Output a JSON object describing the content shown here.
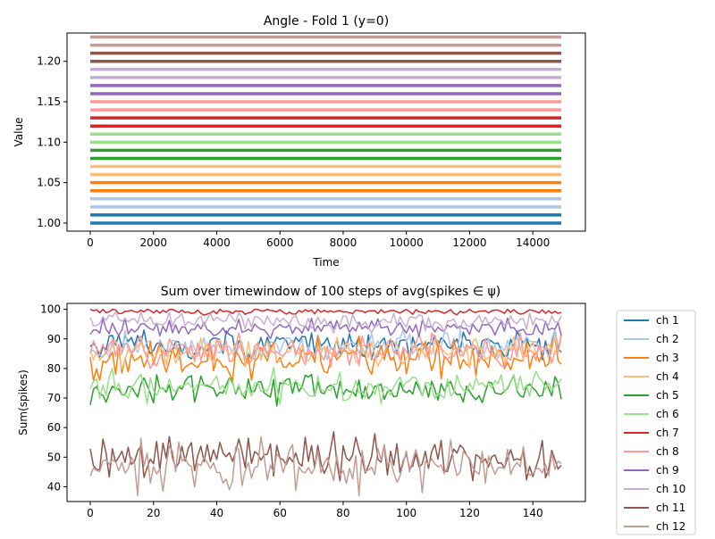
{
  "chart_data": [
    {
      "type": "line",
      "title": "Angle - Fold 1 (y=0)",
      "xlabel": "Time",
      "ylabel": "Value",
      "xlim": [
        0,
        14900
      ],
      "ylim": [
        0.99,
        1.235
      ],
      "xticks": [
        0,
        2000,
        4000,
        6000,
        8000,
        10000,
        12000,
        14000
      ],
      "xtick_labels": [
        "0",
        "2000",
        "4000",
        "6000",
        "8000",
        "10000",
        "12000",
        "14000"
      ],
      "yticks": [
        1.0,
        1.05,
        1.1,
        1.15,
        1.2
      ],
      "ytick_labels": [
        "1.00",
        "1.05",
        "1.10",
        "1.15",
        "1.20"
      ],
      "grid": false,
      "series": [
        {
          "color": "#1f77b4",
          "values": [
            1.0,
            1.01
          ]
        },
        {
          "color": "#aec7e8",
          "values": [
            1.02,
            1.03
          ]
        },
        {
          "color": "#ff7f0e",
          "values": [
            1.04,
            1.05
          ]
        },
        {
          "color": "#ffbb78",
          "values": [
            1.06,
            1.07
          ]
        },
        {
          "color": "#2ca02c",
          "values": [
            1.08,
            1.09
          ]
        },
        {
          "color": "#98df8a",
          "values": [
            1.1,
            1.11
          ]
        },
        {
          "color": "#d62728",
          "values": [
            1.12,
            1.13
          ]
        },
        {
          "color": "#ff9896",
          "values": [
            1.14,
            1.15
          ]
        },
        {
          "color": "#9467bd",
          "values": [
            1.16,
            1.17
          ]
        },
        {
          "color": "#c5b0d5",
          "values": [
            1.18,
            1.19
          ]
        },
        {
          "color": "#8c564b",
          "values": [
            1.2,
            1.21
          ]
        },
        {
          "color": "#c49c94",
          "values": [
            1.22,
            1.23
          ]
        }
      ]
    },
    {
      "type": "line",
      "title": "Sum over timewindow of 100 steps of avg(spikes ∈ ψ)",
      "xlabel": "",
      "ylabel": "Sum(spikes)",
      "xlim": [
        0,
        149
      ],
      "ylim": [
        35,
        102
      ],
      "xticks": [
        0,
        20,
        40,
        60,
        80,
        100,
        120,
        140
      ],
      "xtick_labels": [
        "0",
        "20",
        "40",
        "60",
        "80",
        "100",
        "120",
        "140"
      ],
      "yticks": [
        40,
        50,
        60,
        70,
        80,
        90,
        100
      ],
      "ytick_labels": [
        "40",
        "50",
        "60",
        "70",
        "80",
        "90",
        "100"
      ],
      "grid": false,
      "legend_position": "outside-right",
      "n_points": 150,
      "series": [
        {
          "name": "ch 1",
          "color": "#1f77b4",
          "mean": 88,
          "amp": 2.5,
          "min": 83,
          "max": 93
        },
        {
          "name": "ch 2",
          "color": "#aec7e8",
          "mean": 87,
          "amp": 2.5,
          "min": 83,
          "max": 93
        },
        {
          "name": "ch 3",
          "color": "#ff7f0e",
          "mean": 83,
          "amp": 3,
          "min": 76,
          "max": 91
        },
        {
          "name": "ch 4",
          "color": "#ffbb78",
          "mean": 86,
          "amp": 2.5,
          "min": 80,
          "max": 91
        },
        {
          "name": "ch 5",
          "color": "#2ca02c",
          "mean": 73,
          "amp": 2.5,
          "min": 66,
          "max": 80
        },
        {
          "name": "ch 6",
          "color": "#98df8a",
          "mean": 74,
          "amp": 2.5,
          "min": 68,
          "max": 81
        },
        {
          "name": "ch 7",
          "color": "#d62728",
          "mean": 99.3,
          "amp": 0.5,
          "min": 98,
          "max": 100
        },
        {
          "name": "ch 8",
          "color": "#ff9896",
          "mean": 86,
          "amp": 2.5,
          "min": 80,
          "max": 92
        },
        {
          "name": "ch 9",
          "color": "#9467bd",
          "mean": 93.5,
          "amp": 1.5,
          "min": 90,
          "max": 97
        },
        {
          "name": "ch 10",
          "color": "#c5b0d5",
          "mean": 96,
          "amp": 1.5,
          "min": 92,
          "max": 99
        },
        {
          "name": "ch 11",
          "color": "#8c564b",
          "mean": 50,
          "amp": 3.5,
          "min": 42,
          "max": 63
        },
        {
          "name": "ch 12",
          "color": "#c49c94",
          "mean": 47,
          "amp": 3.5,
          "min": 37,
          "max": 57
        }
      ]
    }
  ]
}
